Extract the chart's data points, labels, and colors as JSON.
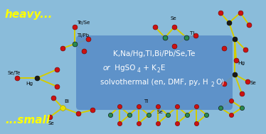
{
  "bg_color": "#8abcda",
  "box_color": "#5a8ec8",
  "bond_color": "#d4cc00",
  "metal_color": "#2a8a50",
  "chalcogen_color": "#cc1111",
  "bi_color": "#e8e000",
  "hg_dark": "#1a1a1a",
  "heavy_color": "#ffff00",
  "small_color": "#ffff00",
  "line1": "K,Na/Hg,Tl,Bi/Pb/Se,Te",
  "line2_italic": "or",
  "line2_hgso": " HgSO",
  "line2_sub4": "4",
  "line2_rest": " + K",
  "line2_sub2": "2",
  "line2_E": "E",
  "line3_main": "solvothermal (en, DMF, py, H",
  "line3_sub": "2",
  "line3_end": "O)",
  "label_heavy": "heavy...",
  "label_small": "...small"
}
